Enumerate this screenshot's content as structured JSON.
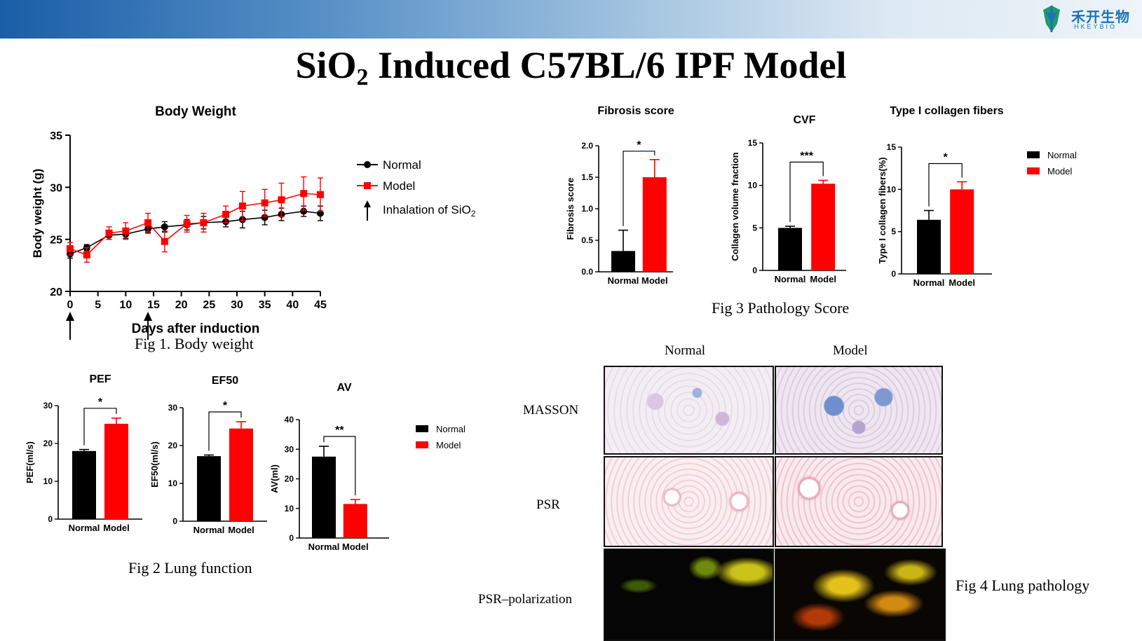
{
  "title": {
    "main": "SiO",
    "sub": "2",
    "rest": " Induced C57BL/6 IPF Model"
  },
  "logo": {
    "cn": "禾开生物",
    "en": "HKEYBIO"
  },
  "captions": {
    "fig1": "Fig 1. Body weight",
    "fig2": "Fig 2 Lung function",
    "fig3": "Fig 3 Pathology Score",
    "fig4": "Fig 4 Lung pathology"
  },
  "pathology": {
    "col_headers": [
      "Normal",
      "Model"
    ],
    "row_labels": [
      "MASSON",
      "PSR",
      "PSR–polarization"
    ]
  },
  "colors": {
    "normal": "#000000",
    "model": "#ff0000",
    "masson_bg": "#f4eef4",
    "psr_bg": "#f7e6ea",
    "polar_bg": "#050505"
  },
  "chart_data": [
    {
      "id": "body_weight",
      "type": "line",
      "title": "Body Weight",
      "xlabel": "Days after induction",
      "ylabel": "Body weight (g)",
      "xlim": [
        0,
        45
      ],
      "ylim": [
        20,
        35
      ],
      "xticks": [
        0,
        5,
        10,
        15,
        20,
        25,
        30,
        35,
        40,
        45
      ],
      "yticks": [
        20,
        25,
        30,
        35
      ],
      "arrows_at": [
        0,
        14
      ],
      "legend": [
        "Normal",
        "Model"
      ],
      "legend_arrow": {
        "text": "Inhalation of SiO",
        "sub": "2"
      },
      "series": [
        {
          "name": "Normal",
          "marker": "circle",
          "color": "#000000",
          "x": [
            0,
            3,
            7,
            10,
            14,
            17,
            21,
            24,
            28,
            31,
            35,
            38,
            42,
            45
          ],
          "y": [
            23.6,
            24.2,
            25.4,
            25.5,
            26.0,
            26.2,
            26.4,
            26.6,
            26.7,
            26.9,
            27.1,
            27.4,
            27.7,
            27.5
          ],
          "err": [
            0.4,
            0.3,
            0.4,
            0.4,
            0.4,
            0.5,
            0.5,
            0.6,
            0.5,
            0.8,
            0.7,
            0.6,
            0.5,
            0.7
          ]
        },
        {
          "name": "Model",
          "marker": "square",
          "color": "#ff0000",
          "x": [
            0,
            3,
            7,
            10,
            14,
            17,
            21,
            24,
            28,
            31,
            35,
            38,
            42,
            45
          ],
          "y": [
            24.1,
            23.5,
            25.6,
            25.8,
            26.6,
            24.8,
            26.5,
            26.6,
            27.4,
            28.2,
            28.5,
            28.8,
            29.4,
            29.3
          ],
          "err": [
            0.6,
            0.7,
            0.6,
            0.8,
            0.9,
            1.0,
            0.8,
            0.9,
            0.8,
            1.4,
            1.3,
            1.6,
            1.6,
            1.6
          ]
        }
      ]
    },
    {
      "id": "pef",
      "type": "bar",
      "title": "PEF",
      "ylabel": "PEF(ml/s)",
      "ylim": [
        0,
        30
      ],
      "yticks": [
        0,
        10,
        20,
        30
      ],
      "categories": [
        "Normal",
        "Model"
      ],
      "values": [
        18,
        25.2
      ],
      "errors": [
        0.4,
        1.5
      ],
      "significance": "*"
    },
    {
      "id": "ef50",
      "type": "bar",
      "title": "EF50",
      "ylabel": "EF50(ml/s)",
      "ylim": [
        0,
        30
      ],
      "yticks": [
        0,
        10,
        20,
        30
      ],
      "categories": [
        "Normal",
        "Model"
      ],
      "values": [
        17.2,
        24.5
      ],
      "errors": [
        0.3,
        1.8
      ],
      "significance": "*"
    },
    {
      "id": "av",
      "type": "bar",
      "title": "AV",
      "ylabel": "AV(ml)",
      "ylim": [
        0,
        40
      ],
      "yticks": [
        0,
        10,
        20,
        30,
        40
      ],
      "categories": [
        "Normal",
        "Model"
      ],
      "values": [
        27.5,
        11.5
      ],
      "errors": [
        3.5,
        1.5
      ],
      "significance": "**",
      "legend": [
        "Normal",
        "Model"
      ]
    },
    {
      "id": "fibrosis",
      "type": "bar",
      "title": "Fibrosis score",
      "ylabel": "Fibrosis score",
      "ylim": [
        0,
        2.0
      ],
      "yticks": [
        0.0,
        0.5,
        1.0,
        1.5,
        2.0
      ],
      "ytick_labels": [
        "0.0",
        "0.5",
        "1.0",
        "1.5",
        "2.0"
      ],
      "categories": [
        "Normal",
        "Model"
      ],
      "values": [
        0.33,
        1.5
      ],
      "errors": [
        0.33,
        0.28
      ],
      "significance": "*"
    },
    {
      "id": "cvf",
      "type": "bar",
      "title": "CVF",
      "ylabel": "Collagen volume fraction",
      "ylim": [
        0,
        15
      ],
      "yticks": [
        0,
        5,
        10,
        15
      ],
      "categories": [
        "Normal",
        "Model"
      ],
      "values": [
        5.0,
        10.2
      ],
      "errors": [
        0.2,
        0.4
      ],
      "significance": "***"
    },
    {
      "id": "collagen",
      "type": "bar",
      "title": "Type I collagen fibers",
      "ylabel": "Type I collagen fibers(%)",
      "ylim": [
        0,
        15
      ],
      "yticks": [
        0,
        5,
        10,
        15
      ],
      "categories": [
        "Normal",
        "Model"
      ],
      "values": [
        6.4,
        10.0
      ],
      "errors": [
        1.1,
        0.9
      ],
      "significance": "*",
      "legend": [
        "Normal",
        "Model"
      ]
    }
  ]
}
